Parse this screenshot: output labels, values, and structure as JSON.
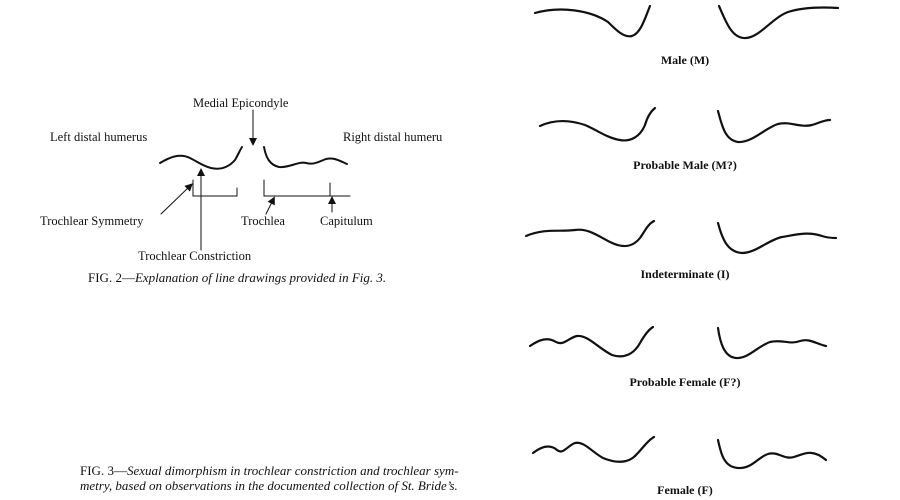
{
  "fig2": {
    "labels": {
      "medial_epicondyle": "Medial Epicondyle",
      "left_distal": "Left distal humerus",
      "right_distal": "Right distal humeru",
      "trochlear_symmetry": "Trochlear Symmetry",
      "trochlea": "Trochlea",
      "capitulum": "Capitulum",
      "trochlear_constriction": "Trochlear Constriction"
    },
    "caption_prefix": "FIG. 2—",
    "caption_text": "Explanation of line drawings provided in Fig. 3."
  },
  "fig3": {
    "caption_prefix": "FIG. 3—",
    "caption_line1": "Sexual dimorphism in trochlear constriction and trochlear sym-",
    "caption_line2": "metry, based on observations in the documented collection of St. Bride’s.",
    "rows": [
      {
        "label": "Male (M)"
      },
      {
        "label": "Probable Male (M?)"
      },
      {
        "label": "Indeterminate (I)"
      },
      {
        "label": "Probable Female (F?)"
      },
      {
        "label": "Female (F)"
      }
    ]
  }
}
